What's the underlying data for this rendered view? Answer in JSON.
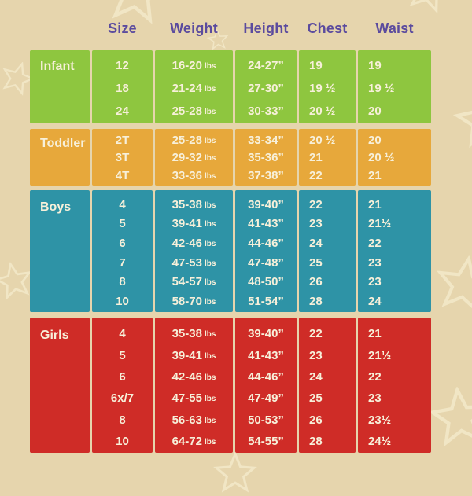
{
  "page": {
    "background_color": "#e6d5ad",
    "star_outline_color": "#f3e8c8",
    "header_text_color": "#5b4b9e",
    "value_text_color": "#f7f0da"
  },
  "chart_data": {
    "type": "table",
    "columns": [
      "Size",
      "Weight",
      "Height",
      "Chest",
      "Waist"
    ],
    "units": {
      "weight": "lbs"
    },
    "sections": [
      {
        "label": "Infant",
        "color": "#8ec63f",
        "rows": [
          {
            "size": "12",
            "weight": "16-20",
            "height": "24-27”",
            "chest": "19",
            "waist": "19"
          },
          {
            "size": "18",
            "weight": "21-24",
            "height": "27-30”",
            "chest": "19 ½",
            "waist": "19 ½"
          },
          {
            "size": "24",
            "weight": "25-28",
            "height": "30-33”",
            "chest": "20 ½",
            "waist": "20"
          }
        ]
      },
      {
        "label": "Toddler",
        "color": "#e7a83b",
        "rows": [
          {
            "size": "2T",
            "weight": "25-28",
            "height": "33-34”",
            "chest": "20 ½",
            "waist": "20"
          },
          {
            "size": "3T",
            "weight": "29-32",
            "height": "35-36”",
            "chest": "21",
            "waist": "20 ½"
          },
          {
            "size": "4T",
            "weight": "33-36",
            "height": "37-38”",
            "chest": "22",
            "waist": "21"
          }
        ]
      },
      {
        "label": "Boys",
        "color": "#2e93a6",
        "rows": [
          {
            "size": "4",
            "weight": "35-38",
            "height": "39-40”",
            "chest": "22",
            "waist": "21"
          },
          {
            "size": "5",
            "weight": "39-41",
            "height": "41-43”",
            "chest": "23",
            "waist": "21½"
          },
          {
            "size": "6",
            "weight": "42-46",
            "height": "44-46”",
            "chest": "24",
            "waist": "22"
          },
          {
            "size": "7",
            "weight": "47-53",
            "height": "47-48”",
            "chest": "25",
            "waist": "23"
          },
          {
            "size": "8",
            "weight": "54-57",
            "height": "48-50”",
            "chest": "26",
            "waist": "23"
          },
          {
            "size": "10",
            "weight": "58-70",
            "height": "51-54”",
            "chest": "28",
            "waist": "24"
          }
        ]
      },
      {
        "label": "Girls",
        "color": "#cf2c27",
        "rows": [
          {
            "size": "4",
            "weight": "35-38",
            "height": "39-40”",
            "chest": "22",
            "waist": "21"
          },
          {
            "size": "5",
            "weight": "39-41",
            "height": "41-43”",
            "chest": "23",
            "waist": "21½"
          },
          {
            "size": "6",
            "weight": "42-46",
            "height": "44-46”",
            "chest": "24",
            "waist": "22"
          },
          {
            "size": "6x/7",
            "weight": "47-55",
            "height": "47-49”",
            "chest": "25",
            "waist": "23"
          },
          {
            "size": "8",
            "weight": "56-63",
            "height": "50-53”",
            "chest": "26",
            "waist": "23½"
          },
          {
            "size": "10",
            "weight": "64-72",
            "height": "54-55”",
            "chest": "28",
            "waist": "24½"
          }
        ]
      }
    ]
  }
}
